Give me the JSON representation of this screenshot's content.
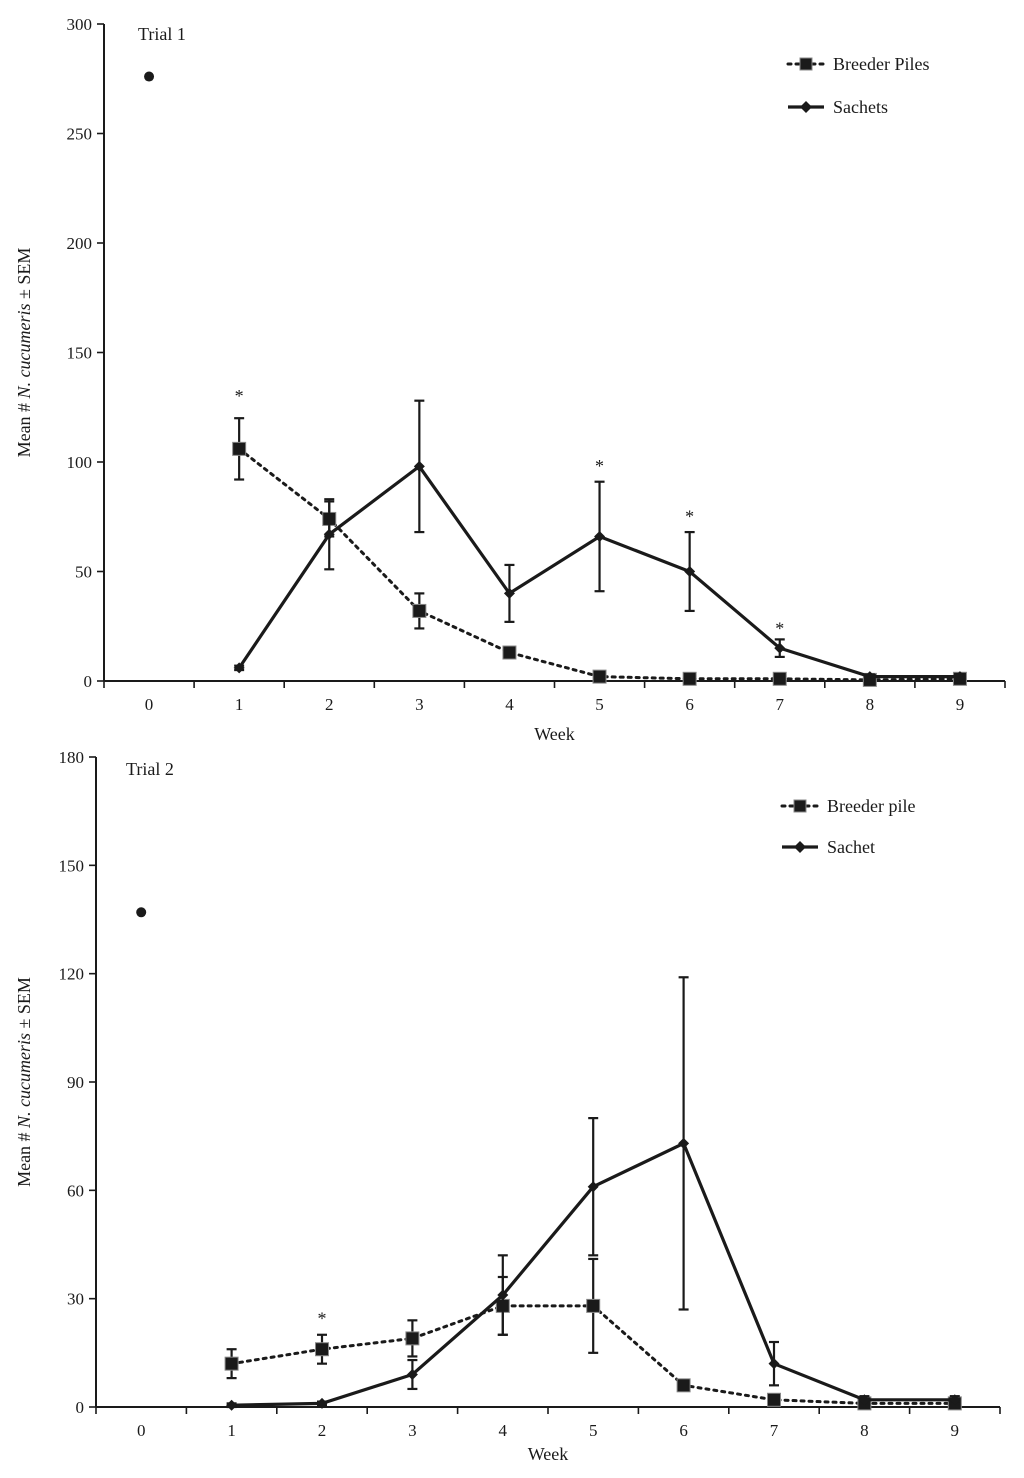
{
  "chart_data": [
    {
      "type": "line",
      "title": "Trial 1",
      "xlabel": "Week",
      "ylabel_prefix": "Mean # ",
      "ylabel_italic": "N. cucumeris",
      "ylabel_suffix": " ± SEM",
      "ylim": [
        0,
        300
      ],
      "yticks": [
        0,
        50,
        100,
        150,
        200,
        250,
        300
      ],
      "xlim": [
        -0.5,
        9.5
      ],
      "xticks": [
        0,
        1,
        2,
        3,
        4,
        5,
        6,
        7,
        8,
        9
      ],
      "initial_point": {
        "x": 0,
        "y": 276
      },
      "series": [
        {
          "name": "Breeder Piles",
          "style": "dotted-square",
          "x": [
            1,
            2,
            3,
            4,
            5,
            6,
            7,
            8,
            9
          ],
          "values": [
            106,
            74,
            32,
            13,
            2,
            1,
            1,
            0.5,
            1
          ],
          "err": [
            14,
            8,
            8,
            2,
            1,
            1,
            1,
            0.5,
            1
          ]
        },
        {
          "name": "Sachets",
          "style": "solid-diamond",
          "x": [
            1,
            2,
            3,
            4,
            5,
            6,
            7,
            8,
            9
          ],
          "values": [
            6,
            67,
            98,
            40,
            66,
            50,
            15,
            2,
            2
          ],
          "err": [
            1,
            16,
            30,
            13,
            25,
            18,
            4,
            1,
            1
          ]
        }
      ],
      "significance": [
        {
          "x": 1,
          "y": 131,
          "label": "*"
        },
        {
          "x": 5,
          "y": 99,
          "label": "*"
        },
        {
          "x": 6,
          "y": 76,
          "label": "*"
        },
        {
          "x": 7,
          "y": 25,
          "label": "*"
        }
      ]
    },
    {
      "type": "line",
      "title": "Trial 2",
      "xlabel": "Week",
      "ylabel_prefix": "Mean # ",
      "ylabel_italic": "N. cucumeris",
      "ylabel_suffix": " ± SEM",
      "ylim": [
        0,
        180
      ],
      "yticks": [
        0,
        30,
        60,
        90,
        120,
        150,
        180
      ],
      "xlim": [
        -0.5,
        9.5
      ],
      "xticks": [
        0,
        1,
        2,
        3,
        4,
        5,
        6,
        7,
        8,
        9
      ],
      "initial_point": {
        "x": 0,
        "y": 137
      },
      "series": [
        {
          "name": "Breeder pile",
          "style": "dotted-square",
          "x": [
            1,
            2,
            3,
            4,
            5,
            6,
            7,
            8,
            9
          ],
          "values": [
            12,
            16,
            19,
            28,
            28,
            6,
            2,
            1,
            1
          ],
          "err": [
            4,
            4,
            5,
            8,
            13,
            1,
            1,
            0.5,
            0.5
          ]
        },
        {
          "name": "Sachet",
          "style": "solid-diamond",
          "x": [
            1,
            2,
            3,
            4,
            5,
            6,
            7,
            8,
            9
          ],
          "values": [
            0.5,
            1,
            9,
            31,
            61,
            73,
            12,
            2,
            2
          ],
          "err": [
            0.5,
            0.5,
            4,
            11,
            19,
            46,
            6,
            1,
            1
          ]
        }
      ],
      "significance": [
        {
          "x": 2,
          "y": 25,
          "label": "*"
        }
      ]
    }
  ]
}
